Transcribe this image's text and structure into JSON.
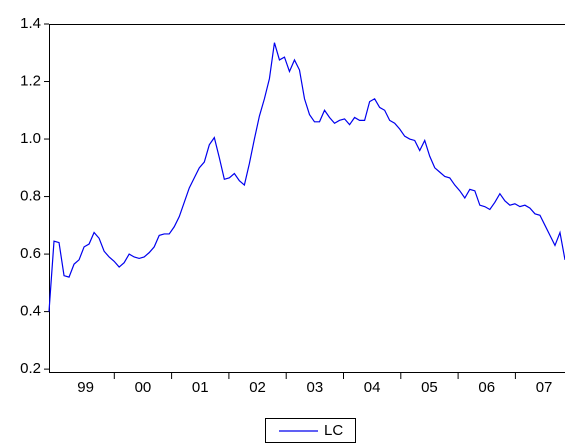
{
  "chart_data": {
    "type": "line",
    "x_labels": [
      "99",
      "00",
      "01",
      "02",
      "03",
      "04",
      "05",
      "06",
      "07"
    ],
    "series": [
      {
        "name": "LC",
        "color": "#0000ee",
        "values": [
          0.4,
          0.645,
          0.64,
          0.525,
          0.52,
          0.565,
          0.58,
          0.625,
          0.635,
          0.675,
          0.655,
          0.61,
          0.59,
          0.575,
          0.555,
          0.57,
          0.6,
          0.59,
          0.585,
          0.59,
          0.605,
          0.625,
          0.665,
          0.67,
          0.67,
          0.695,
          0.73,
          0.78,
          0.83,
          0.865,
          0.9,
          0.92,
          0.98,
          1.005,
          0.935,
          0.86,
          0.865,
          0.88,
          0.855,
          0.84,
          0.915,
          1.0,
          1.08,
          1.14,
          1.21,
          1.335,
          1.275,
          1.285,
          1.235,
          1.275,
          1.24,
          1.14,
          1.085,
          1.06,
          1.06,
          1.1,
          1.075,
          1.055,
          1.065,
          1.07,
          1.05,
          1.075,
          1.065,
          1.065,
          1.13,
          1.14,
          1.11,
          1.1,
          1.065,
          1.055,
          1.035,
          1.01,
          1.0,
          0.995,
          0.96,
          0.995,
          0.94,
          0.9,
          0.885,
          0.87,
          0.865,
          0.84,
          0.82,
          0.795,
          0.825,
          0.82,
          0.77,
          0.765,
          0.755,
          0.78,
          0.81,
          0.785,
          0.77,
          0.775,
          0.765,
          0.77,
          0.76,
          0.74,
          0.735,
          0.7,
          0.665,
          0.63,
          0.675,
          0.58
        ]
      }
    ],
    "ylim": [
      0.19,
      1.4
    ],
    "yticks": [
      0.2,
      0.4,
      0.6,
      0.8,
      {
        "value": 1,
        "label": "1.0"
      },
      1.2,
      1.4
    ]
  }
}
